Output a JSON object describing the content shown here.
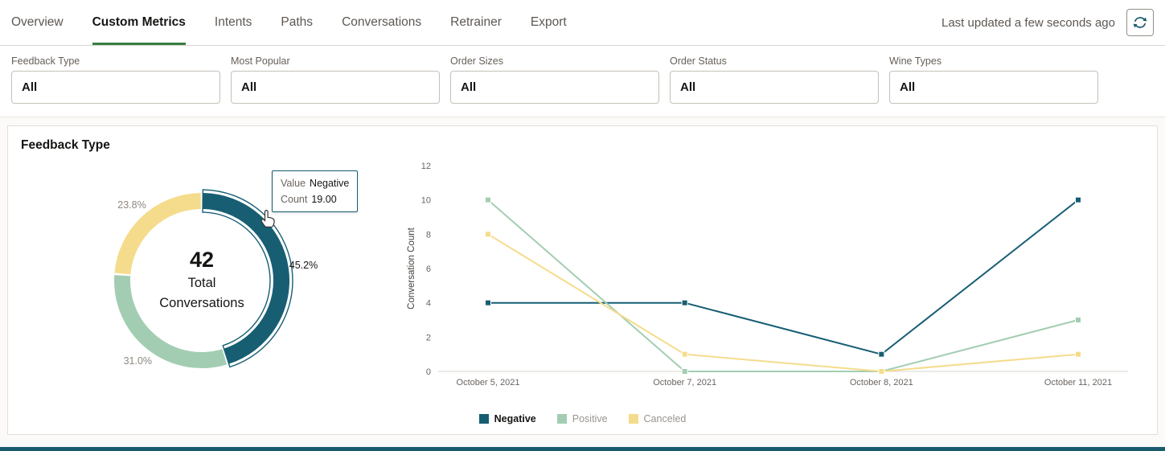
{
  "header": {
    "tabs": [
      {
        "label": "Overview"
      },
      {
        "label": "Custom Metrics"
      },
      {
        "label": "Intents"
      },
      {
        "label": "Paths"
      },
      {
        "label": "Conversations"
      },
      {
        "label": "Retrainer"
      },
      {
        "label": "Export"
      }
    ],
    "active_tab": "Custom Metrics",
    "last_updated": "Last updated a few seconds ago"
  },
  "filters": [
    {
      "label": "Feedback Type",
      "value": "All"
    },
    {
      "label": "Most Popular",
      "value": "All"
    },
    {
      "label": "Order Sizes",
      "value": "All"
    },
    {
      "label": "Order Status",
      "value": "All"
    },
    {
      "label": "Wine Types",
      "value": "All"
    }
  ],
  "card": {
    "title": "Feedback Type"
  },
  "pie_tooltip": {
    "value_label": "Value",
    "value_text": "Negative",
    "count_label": "Count",
    "count_text": "19.00"
  },
  "colors": {
    "negative": "#175e73",
    "positive": "#a3cdb2",
    "canceled": "#f5dc8c",
    "active_tab_underline": "#3a7d44",
    "bottom_bar": "#1a5b6e"
  },
  "chart_data": [
    {
      "type": "pie",
      "donut": true,
      "center_value": "42",
      "center_label_line1": "Total",
      "center_label_line2": "Conversations",
      "slices": [
        {
          "label": "Negative",
          "percent": 45.2,
          "percent_label": "45.2%",
          "count": 19,
          "color": "#175e73",
          "highlighted": true
        },
        {
          "label": "Positive",
          "percent": 31.0,
          "percent_label": "31.0%",
          "color": "#a3cdb2",
          "highlighted": false
        },
        {
          "label": "Canceled",
          "percent": 23.8,
          "percent_label": "23.8%",
          "color": "#f5dc8c",
          "highlighted": false
        }
      ]
    },
    {
      "type": "line",
      "x": [
        "October 5, 2021",
        "October 7, 2021",
        "October 8, 2021",
        "October 11, 2021"
      ],
      "ylabel": "Conversation Count",
      "ylim": [
        0,
        12
      ],
      "yticks": [
        0,
        2,
        4,
        6,
        8,
        10,
        12
      ],
      "series": [
        {
          "name": "Negative",
          "color": "#175e73",
          "values": [
            4,
            4,
            1,
            10
          ]
        },
        {
          "name": "Positive",
          "color": "#a3cdb2",
          "values": [
            10,
            0,
            0,
            3
          ]
        },
        {
          "name": "Canceled",
          "color": "#f5dc8c",
          "values": [
            8,
            1,
            0,
            1
          ]
        }
      ],
      "legend_position": "bottom"
    }
  ]
}
